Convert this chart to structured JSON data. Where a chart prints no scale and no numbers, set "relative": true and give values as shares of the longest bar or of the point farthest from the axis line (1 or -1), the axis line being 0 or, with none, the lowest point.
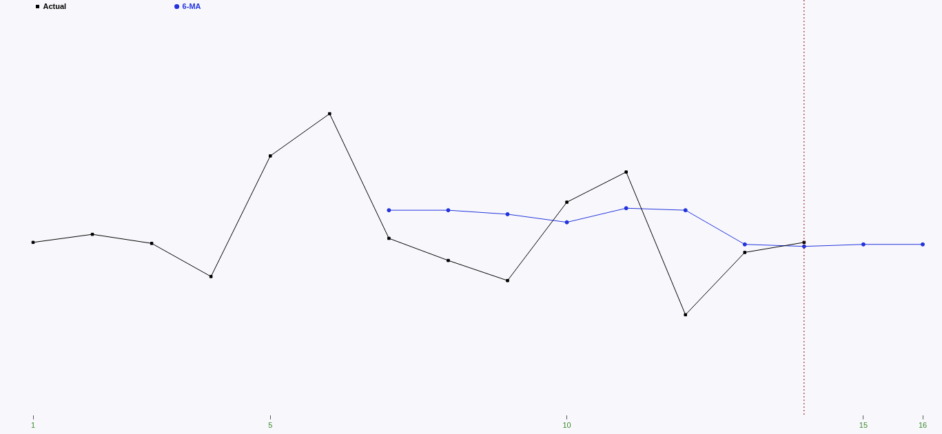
{
  "chart_data": {
    "type": "line",
    "relative": true,
    "x": [
      1,
      2,
      3,
      4,
      5,
      6,
      7,
      8,
      9,
      10,
      11,
      12,
      13,
      14,
      15,
      16
    ],
    "xlim": [
      1,
      16
    ],
    "xticks": [
      1,
      5,
      10,
      15,
      16
    ],
    "series": [
      {
        "name": "Actual",
        "color": "#000000",
        "marker": "square",
        "values": [
          0.36,
          0.4,
          0.355,
          0.19,
          0.79,
          1,
          0.38,
          0.27,
          0.17,
          0.56,
          0.71,
          0,
          0.31,
          0.36,
          null,
          null
        ]
      },
      {
        "name": "6-MA",
        "color": "#2233dd",
        "marker": "circle",
        "values": [
          null,
          null,
          null,
          null,
          null,
          null,
          0.52,
          0.52,
          0.5,
          0.46,
          0.53,
          0.52,
          0.35,
          0.34,
          0.35,
          0.35
        ]
      }
    ],
    "ref_lines": [
      {
        "axis": "x",
        "value": 14,
        "color": "#8b0000",
        "line_style": "dotted"
      }
    ],
    "legend": "top left",
    "tick_labels": "x",
    "line_style": "solid"
  }
}
